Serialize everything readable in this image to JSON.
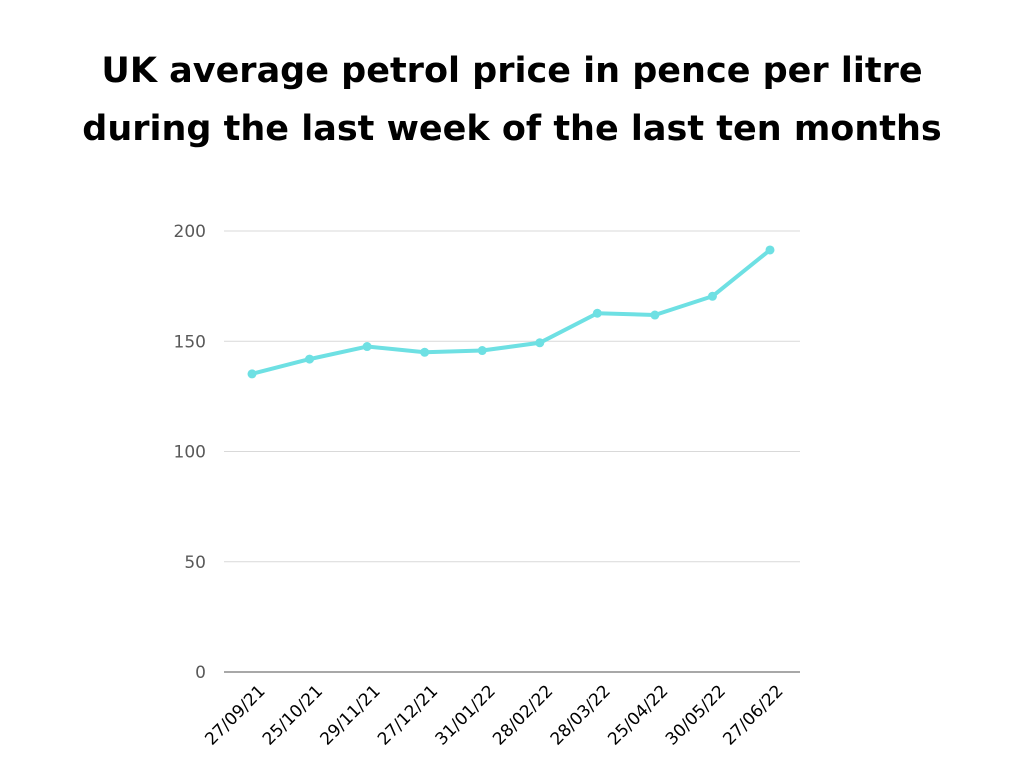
{
  "title": {
    "line1": "UK average petrol price in pence per litre",
    "line2": "during the last week of the last ten months"
  },
  "colors": {
    "line": "#6ee0e3",
    "grid": "#d9d9d9",
    "axis": "#8c8c8c",
    "ytick_text": "#595959",
    "xtick_text": "#000000"
  },
  "chart_data": {
    "type": "line",
    "title": "UK average petrol price in pence per litre during the last week of the last ten months",
    "xlabel": "",
    "ylabel": "",
    "categories": [
      "27/09/21",
      "25/10/21",
      "29/11/21",
      "27/12/21",
      "31/01/22",
      "28/02/22",
      "28/03/22",
      "25/04/22",
      "30/05/22",
      "27/06/22"
    ],
    "series": [
      {
        "values": [
          135.2,
          141.9,
          147.6,
          145.0,
          145.8,
          149.3,
          162.7,
          161.9,
          170.4,
          191.4
        ]
      }
    ],
    "ylim": [
      0,
      200
    ],
    "yticks": [
      "0",
      "50",
      "100",
      "150",
      "200"
    ],
    "grid": true,
    "legend": "none"
  }
}
